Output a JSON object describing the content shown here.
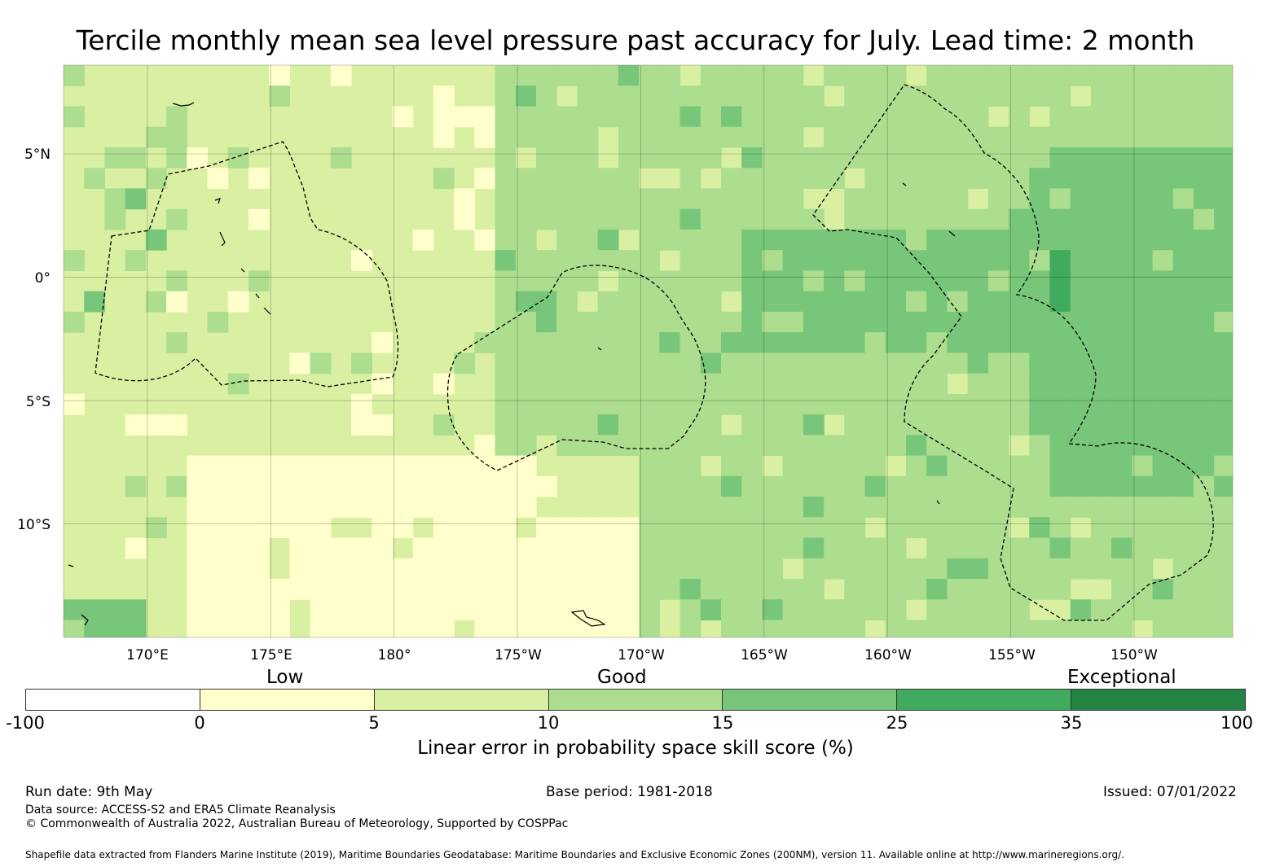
{
  "title": "Tercile monthly mean sea level pressure past accuracy for July. Lead time: 2 month",
  "map": {
    "lat_labels": [
      "5°N",
      "0°",
      "5°S",
      "10°S"
    ],
    "lon_labels": [
      "170°E",
      "175°E",
      "180°",
      "175°W",
      "170°W",
      "165°W",
      "160°W",
      "155°W",
      "150°W"
    ],
    "extent": {
      "lon_min": 166.6,
      "lon_max": 214.0,
      "lat_min": -14.6,
      "lat_max": 8.6
    }
  },
  "colorbar": {
    "categories": [
      "Low",
      "Good",
      "Exceptional"
    ],
    "ticks": [
      "-100",
      "0",
      "5",
      "10",
      "15",
      "25",
      "35",
      "100"
    ],
    "colors": [
      "#ffffff",
      "#ffffcc",
      "#d9f0a3",
      "#addd8e",
      "#78c679",
      "#41ab5d",
      "#238443"
    ],
    "label": "Linear error in probability space skill score (%)"
  },
  "footer": {
    "run_date": "Run date: 9th May",
    "base_period": "Base period: 1981-2018",
    "issued": "Issued: 07/01/2022",
    "data_source": "Data source: ACCESS-S2 and ERA5 Climate Reanalysis",
    "copyright": "© Commonwealth of Australia 2022, Australian Bureau of Meteorology, Supported by COSPPac",
    "shapefile_credit": "Shapefile data extracted from Flanders Marine Institute (2019), Maritime Boundaries Geodatabase: Maritime Boundaries and Exclusive Economic Zones (200NM), version 11. Available online at http://www.marineregions.org/."
  }
}
